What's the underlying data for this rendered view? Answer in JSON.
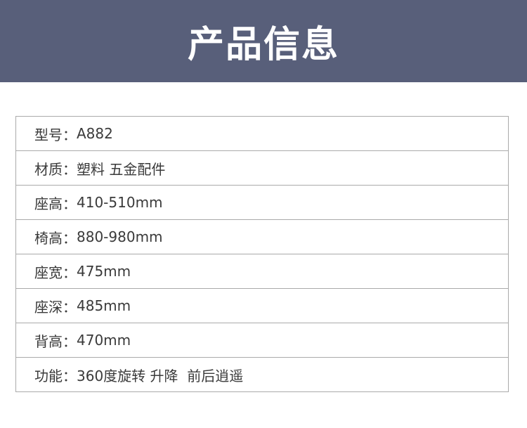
{
  "header": {
    "title": "产品信息",
    "background": "#585f7a"
  },
  "specs": [
    {
      "label": "型号",
      "value": "A882"
    },
    {
      "label": "材质",
      "value": "塑料 五金配件"
    },
    {
      "label": "座高",
      "value": "410-510mm"
    },
    {
      "label": "椅高",
      "value": "880-980mm"
    },
    {
      "label": "座宽",
      "value": "475mm"
    },
    {
      "label": "座深",
      "value": "485mm"
    },
    {
      "label": "背高",
      "value": "470mm"
    },
    {
      "label": "功能",
      "value": "360度旋转 升降  前后逍遥"
    }
  ],
  "separator": "："
}
